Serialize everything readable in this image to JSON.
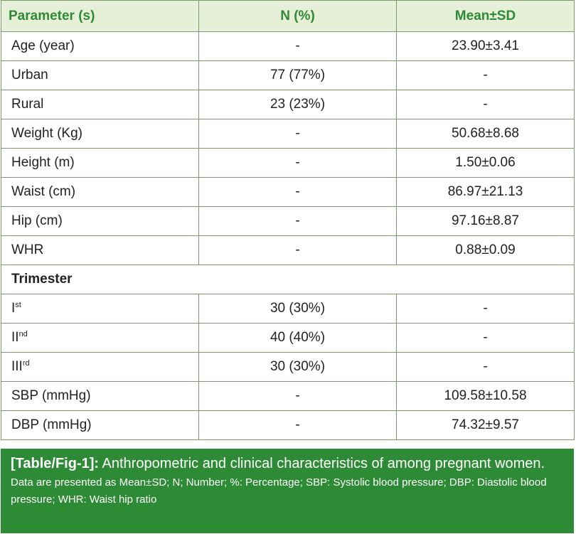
{
  "table": {
    "headers": [
      "Parameter (s)",
      "N (%)",
      "Mean±SD"
    ],
    "rows": [
      {
        "label": "Age (year)",
        "n": "-",
        "mean": "23.90±3.41"
      },
      {
        "label": "Urban",
        "n": "77 (77%)",
        "mean": "-"
      },
      {
        "label": "Rural",
        "n": "23 (23%)",
        "mean": "-"
      },
      {
        "label": "Weight (Kg)",
        "n": "-",
        "mean": "50.68±8.68"
      },
      {
        "label": "Height (m)",
        "n": "-",
        "mean": "1.50±0.06"
      },
      {
        "label": "Waist (cm)",
        "n": "-",
        "mean": "86.97±21.13"
      },
      {
        "label": "Hip (cm)",
        "n": "-",
        "mean": "97.16±8.87"
      },
      {
        "label": "WHR",
        "n": "-",
        "mean": "0.88±0.09"
      }
    ],
    "section_label": "Trimester",
    "trimester_rows": [
      {
        "base": "I",
        "sup": "st",
        "n": "30 (30%)",
        "mean": "-"
      },
      {
        "base": "II",
        "sup": "nd",
        "n": "40 (40%)",
        "mean": "-"
      },
      {
        "base": "III",
        "sup": "rd",
        "n": "30 (30%)",
        "mean": "-"
      }
    ],
    "bp_rows": [
      {
        "label": "SBP (mmHg)",
        "n": "-",
        "mean": "109.58±10.58"
      },
      {
        "label": "DBP (mmHg)",
        "n": "-",
        "mean": "74.32±9.57"
      }
    ]
  },
  "caption": {
    "tag": "[Table/Fig-1]:",
    "title": " Anthropometric and clinical characteristics of among pregnant women.",
    "note": "Data are presented as Mean±SD; N; Number; %: Percentage; SBP: Systolic blood pressure; DBP: Diastolic blood pressure; WHR: Waist hip ratio"
  },
  "colors": {
    "header_bg": "#e6efd8",
    "header_text": "#2f8a36",
    "border": "#7a9a6a",
    "caption_bg": "#2e8b35",
    "caption_text": "#ffffff"
  }
}
